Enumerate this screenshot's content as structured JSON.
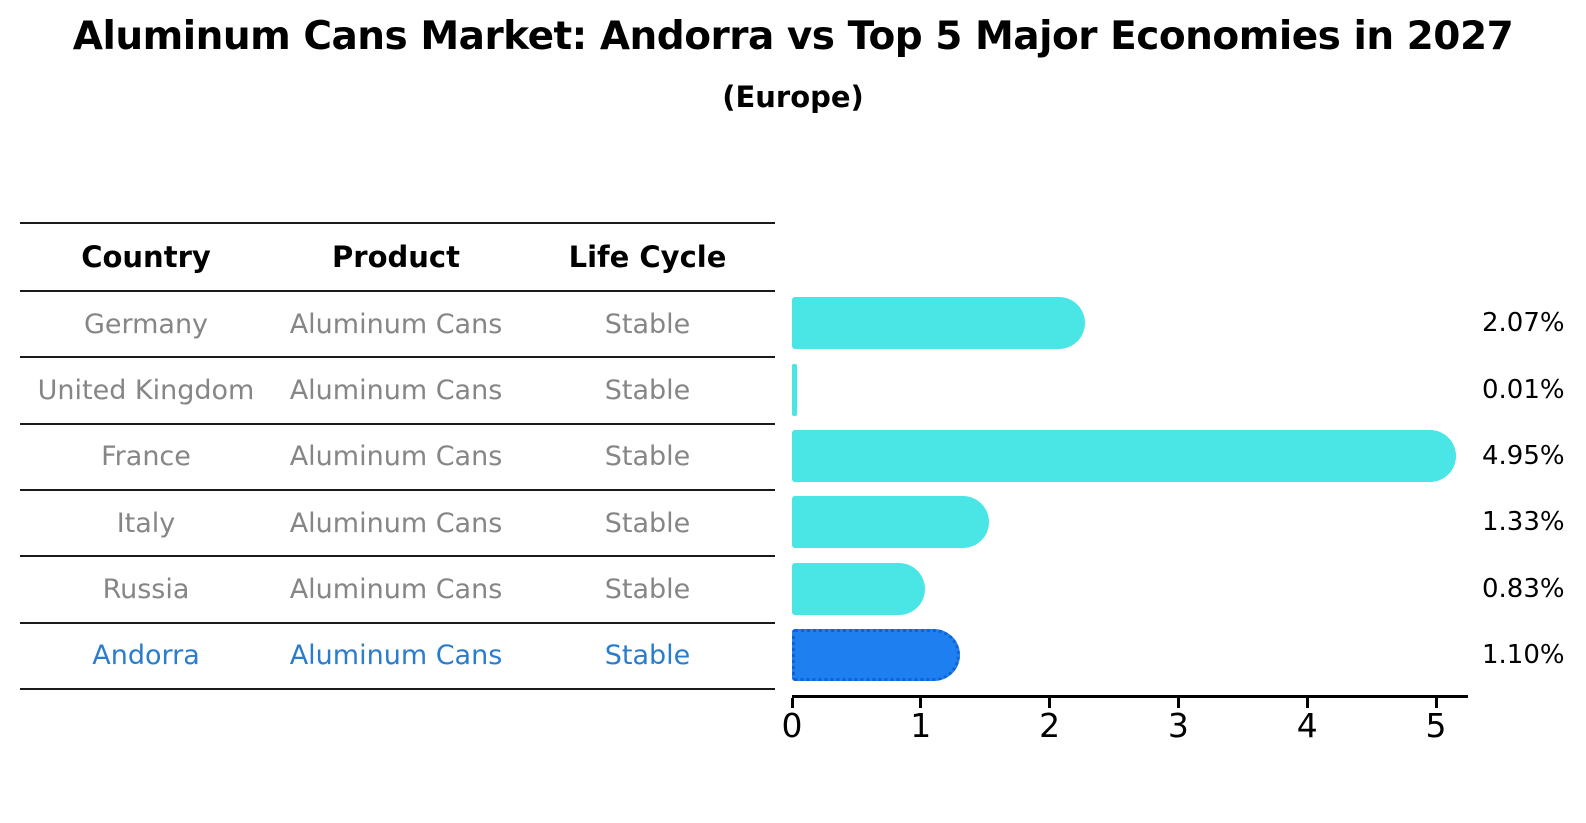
{
  "title": "Aluminum Cans Market: Andorra vs Top 5 Major Economies in 2027",
  "subtitle": "(Europe)",
  "table": {
    "headers": [
      "Country",
      "Product",
      "Life Cycle"
    ],
    "rows": [
      {
        "country": "Germany",
        "product": "Aluminum Cans",
        "life_cycle": "Stable",
        "highlight": false
      },
      {
        "country": "United Kingdom",
        "product": "Aluminum Cans",
        "life_cycle": "Stable",
        "highlight": false
      },
      {
        "country": "France",
        "product": "Aluminum Cans",
        "life_cycle": "Stable",
        "highlight": false
      },
      {
        "country": "Italy",
        "product": "Aluminum Cans",
        "life_cycle": "Stable",
        "highlight": false
      },
      {
        "country": "Russia",
        "product": "Aluminum Cans",
        "life_cycle": "Stable",
        "highlight": false
      },
      {
        "country": "Andorra",
        "product": "Aluminum Cans",
        "life_cycle": "Stable",
        "highlight": true
      }
    ]
  },
  "chart_data": {
    "type": "bar",
    "orientation": "horizontal",
    "title": "Aluminum Cans Market: Andorra vs Top 5 Major Economies in 2027",
    "subtitle": "(Europe)",
    "categories": [
      "Germany",
      "United Kingdom",
      "France",
      "Italy",
      "Russia",
      "Andorra"
    ],
    "values": [
      2.07,
      0.01,
      4.95,
      1.33,
      0.83,
      1.1
    ],
    "value_labels": [
      "2.07%",
      "0.01%",
      "4.95%",
      "1.33%",
      "0.83%",
      "1.10%"
    ],
    "xlim": [
      0,
      5.25
    ],
    "xticks": [
      "0",
      "1",
      "2",
      "3",
      "4",
      "5"
    ],
    "grid": false,
    "legend": false,
    "bar_color": "#4ae5e5",
    "highlight_index": 5,
    "highlight_color": "#1e80f0",
    "highlight_border_color": "#0f62d6"
  },
  "colors": {
    "background": "#ffffff",
    "header_text": "#000000",
    "row_text": "#868686",
    "highlight_text": "#2a7ccc",
    "axis": "#000000"
  }
}
